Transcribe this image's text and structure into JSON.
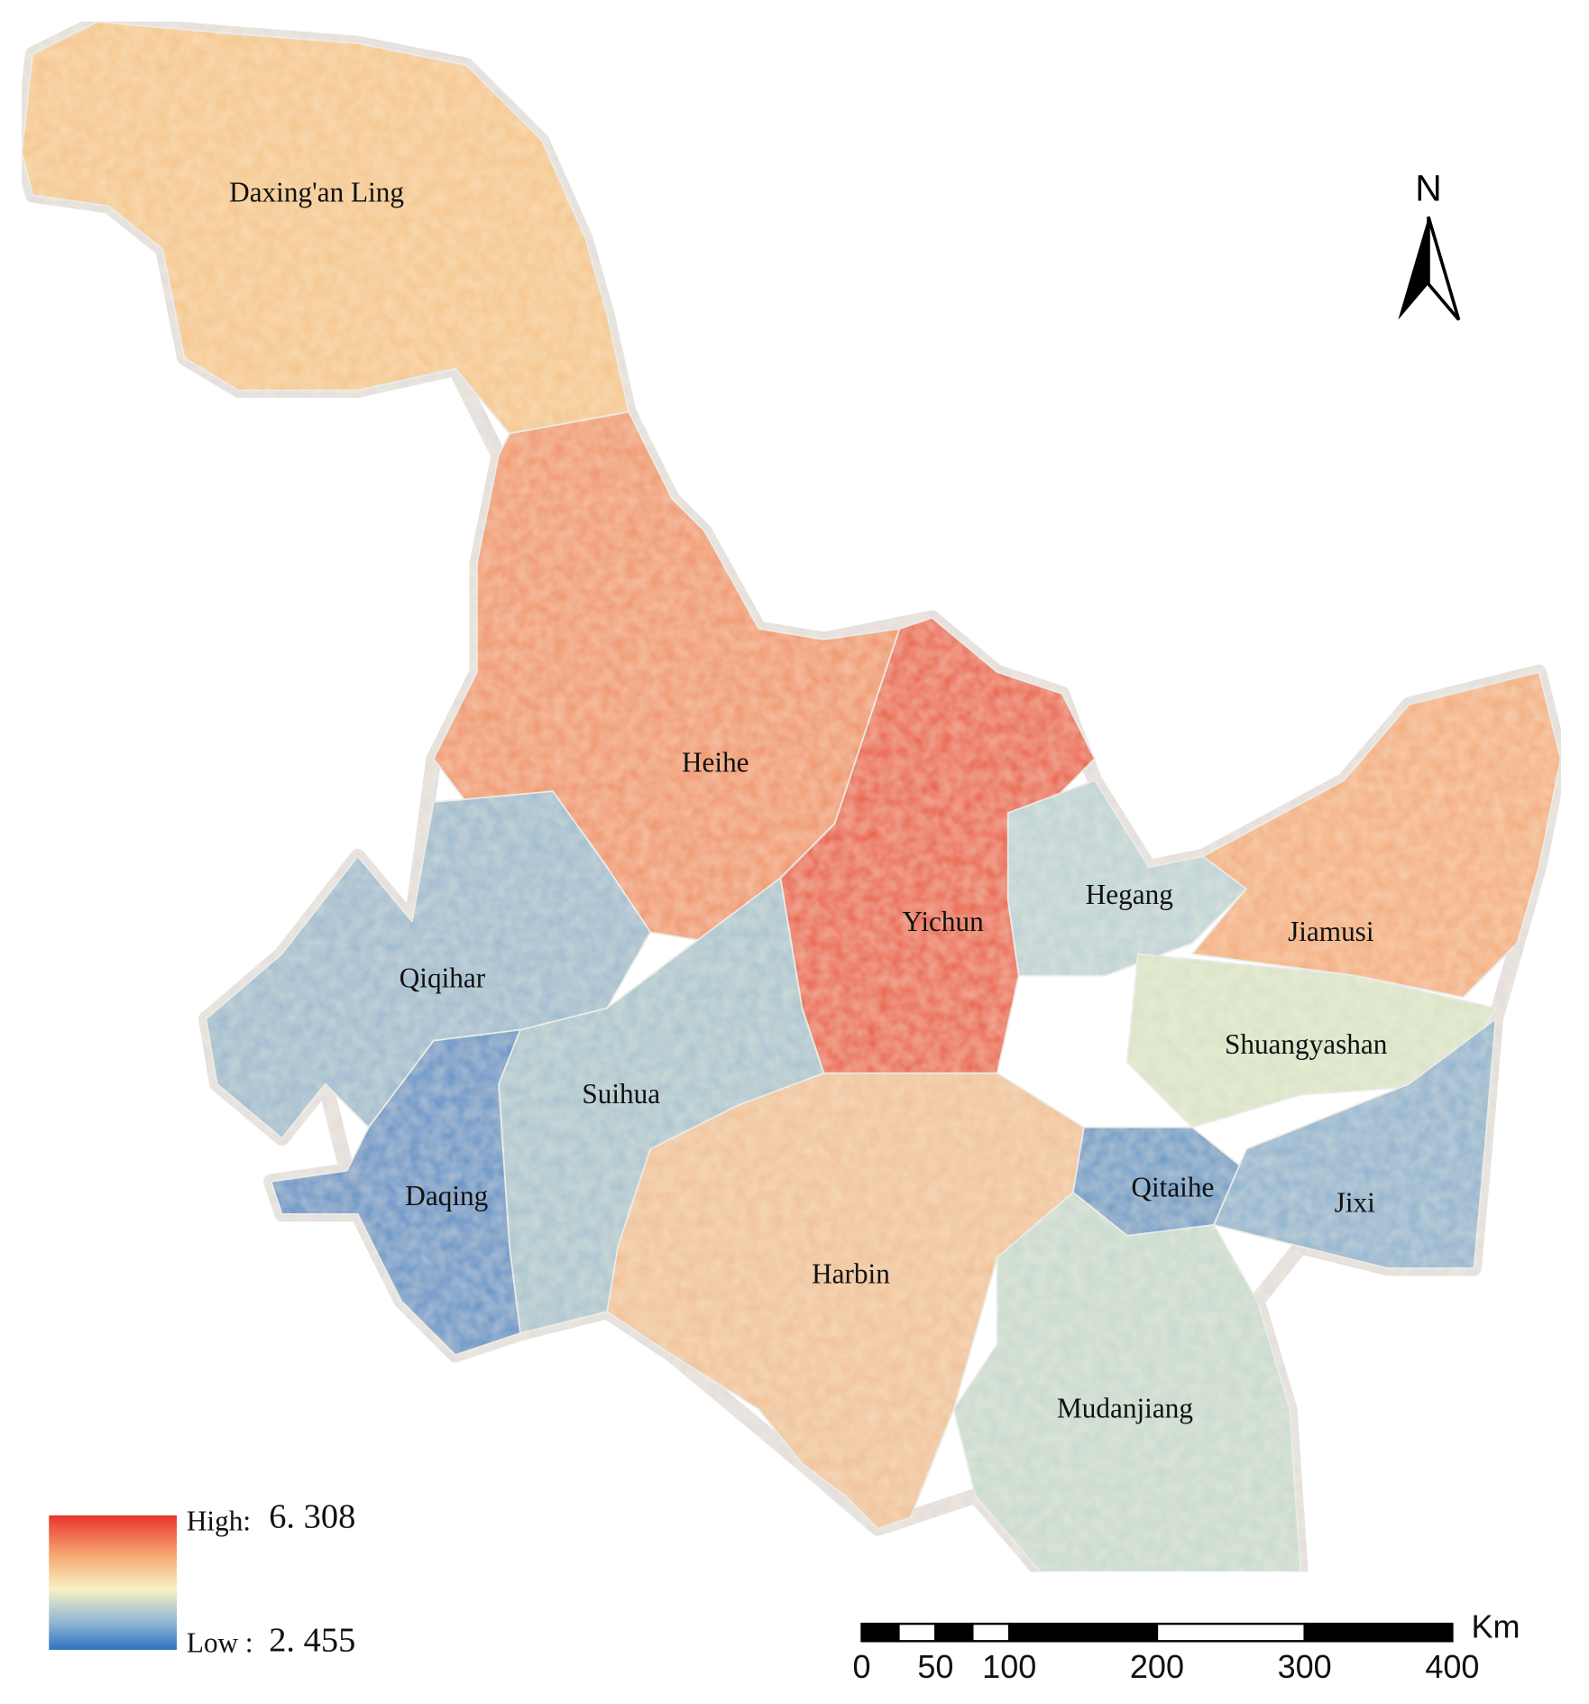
{
  "map": {
    "north": "N",
    "regions": [
      {
        "name": "Daxing'an Ling"
      },
      {
        "name": "Heihe"
      },
      {
        "name": "Yichun"
      },
      {
        "name": "Hegang"
      },
      {
        "name": "Jiamusi"
      },
      {
        "name": "Qiqihar"
      },
      {
        "name": "Suihua"
      },
      {
        "name": "Shuangyashan"
      },
      {
        "name": "Daqing"
      },
      {
        "name": "Qitaihe"
      },
      {
        "name": "Jixi"
      },
      {
        "name": "Harbin"
      },
      {
        "name": "Mudanjiang"
      }
    ],
    "legend": {
      "high": "High:",
      "high_value": {
        "value": 6.308,
        "label": "6. 308"
      },
      "low": "Low :",
      "low_value": {
        "value": 2.455,
        "label": "2. 455"
      }
    },
    "scale_bar": {
      "unit": "Km",
      "ticks": [
        0,
        50,
        100,
        200,
        300,
        400
      ]
    }
  }
}
